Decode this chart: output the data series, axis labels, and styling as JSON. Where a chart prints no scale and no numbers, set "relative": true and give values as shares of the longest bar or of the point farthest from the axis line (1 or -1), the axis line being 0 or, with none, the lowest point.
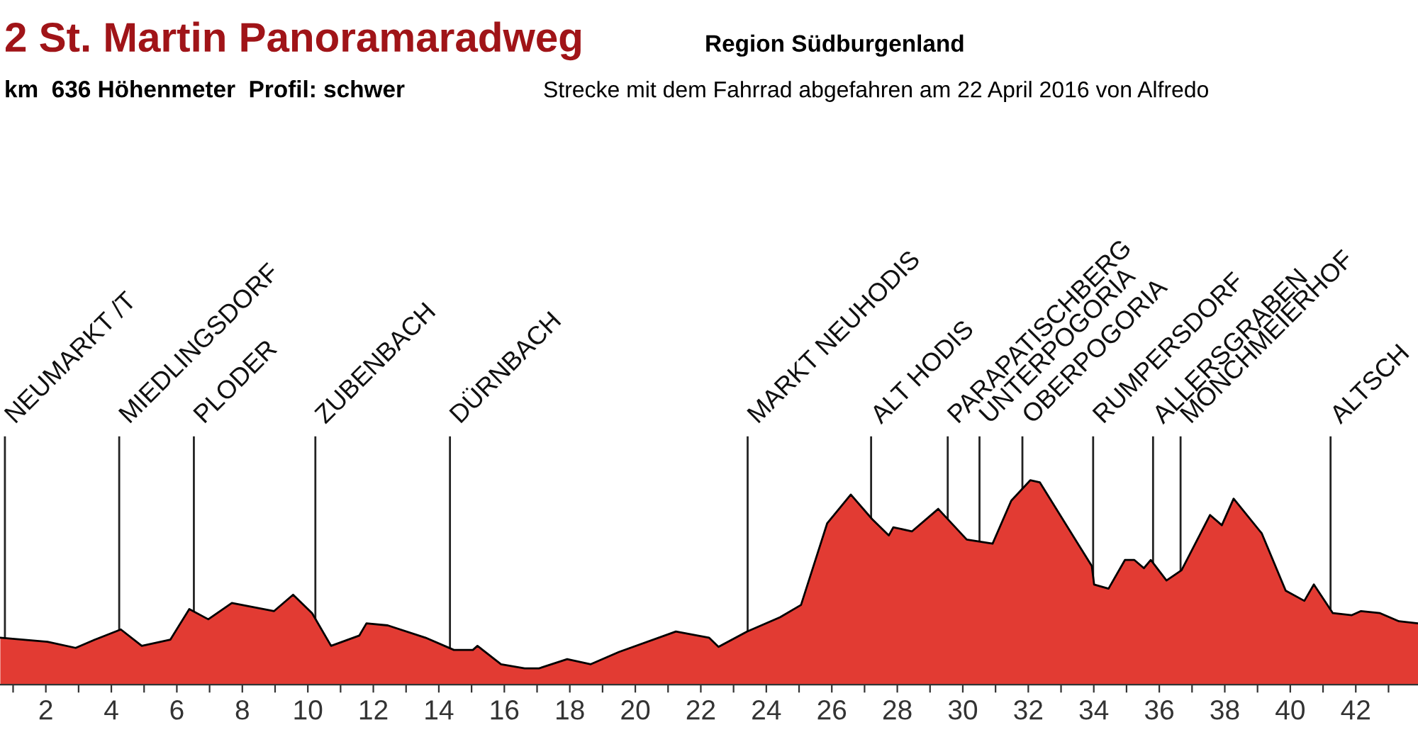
{
  "chart_data": {
    "type": "area",
    "title": "2 St. Martin Panoramaradweg",
    "subtitle": "km  636 Höhenmeter  Profil: schwer",
    "annotations": [
      "Region Südburgenland",
      "Strecke mit dem Fahrrad abgefahren am 22 April 2016 von Alfredo"
    ],
    "relative": true,
    "x": [
      0.61,
      2.05,
      2.91,
      3.49,
      4.29,
      4.93,
      5.8,
      6.38,
      6.96,
      7.68,
      8.97,
      9.55,
      10.13,
      10.71,
      11.57,
      11.79,
      12.44,
      13.59,
      14.46,
      15.04,
      15.18,
      15.9,
      16.62,
      17.06,
      17.92,
      18.64,
      19.5,
      21.24,
      22.25,
      22.54,
      23.41,
      24.42,
      25.06,
      25.86,
      26.58,
      27.23,
      27.74,
      27.88,
      28.45,
      29.25,
      30.12,
      30.91,
      31.48,
      32.06,
      32.35,
      33.94,
      34.01,
      34.45,
      34.95,
      35.24,
      35.53,
      35.74,
      36.22,
      36.68,
      37.55,
      37.91,
      38.27,
      39.13,
      39.86,
      40.43,
      40.72,
      41.3,
      41.88,
      42.16,
      42.74,
      43.32,
      43.9
    ],
    "series": [
      {
        "color": "#e23b33",
        "values": [
          0.23,
          0.21,
          0.18,
          0.22,
          0.27,
          0.19,
          0.22,
          0.37,
          0.32,
          0.4,
          0.36,
          0.44,
          0.35,
          0.19,
          0.24,
          0.3,
          0.29,
          0.23,
          0.17,
          0.17,
          0.19,
          0.1,
          0.08,
          0.08,
          0.125,
          0.1,
          0.16,
          0.26,
          0.23,
          0.185,
          0.26,
          0.33,
          0.39,
          0.79,
          0.93,
          0.81,
          0.73,
          0.77,
          0.75,
          0.86,
          0.71,
          0.69,
          0.9,
          1.0,
          0.99,
          0.58,
          0.49,
          0.47,
          0.61,
          0.61,
          0.57,
          0.61,
          0.51,
          0.56,
          0.83,
          0.78,
          0.91,
          0.74,
          0.46,
          0.41,
          0.49,
          0.35,
          0.34,
          0.36,
          0.35,
          0.31,
          0.3
        ]
      }
    ],
    "xlim": [
      0.6,
      43.9
    ],
    "xticks": [
      {
        "value": 1,
        "label": null
      },
      2,
      {
        "value": 3,
        "label": null
      },
      4,
      {
        "value": 5,
        "label": null
      },
      6,
      {
        "value": 7,
        "label": null
      },
      8,
      {
        "value": 9,
        "label": null
      },
      10,
      {
        "value": 11,
        "label": null
      },
      12,
      {
        "value": 13,
        "label": null
      },
      14,
      {
        "value": 15,
        "label": null
      },
      16,
      {
        "value": 17,
        "label": null
      },
      18,
      {
        "value": 19,
        "label": null
      },
      20,
      {
        "value": 21,
        "label": null
      },
      22,
      {
        "value": 23,
        "label": null
      },
      24,
      {
        "value": 25,
        "label": null
      },
      26,
      {
        "value": 27,
        "label": null
      },
      28,
      {
        "value": 29,
        "label": null
      },
      30,
      {
        "value": 31,
        "label": null
      },
      32,
      {
        "value": 33,
        "label": null
      },
      34,
      {
        "value": 35,
        "label": null
      },
      36,
      {
        "value": 37,
        "label": null
      },
      38,
      {
        "value": 39,
        "label": null
      },
      40,
      {
        "value": 41,
        "label": null
      },
      42,
      {
        "value": 43,
        "label": null
      }
    ],
    "ref_lines": [
      {
        "axis": "x",
        "value": 0.75,
        "label": "NEUMARKT /T",
        "color": "#222222"
      },
      {
        "axis": "x",
        "value": 4.24,
        "label": "MIEDLINGSDORF",
        "color": "#222222"
      },
      {
        "axis": "x",
        "value": 6.52,
        "label": "PLODER",
        "color": "#222222"
      },
      {
        "axis": "x",
        "value": 10.23,
        "label": "ZUBENBACH",
        "color": "#222222"
      },
      {
        "axis": "x",
        "value": 14.34,
        "label": "DÜRNBACH",
        "color": "#222222"
      },
      {
        "axis": "x",
        "value": 23.43,
        "label": "MARKT NEUHODIS",
        "color": "#222222"
      },
      {
        "axis": "x",
        "value": 27.2,
        "label": "ALT HODIS",
        "color": "#222222"
      },
      {
        "axis": "x",
        "value": 29.54,
        "label": "PARAPATISCHBERG",
        "color": "#222222"
      },
      {
        "axis": "x",
        "value": 30.51,
        "label": "UNTERPOGORIA",
        "color": "#222222"
      },
      {
        "axis": "x",
        "value": 31.82,
        "label": "OBERPOGORIA",
        "color": "#222222"
      },
      {
        "axis": "x",
        "value": 33.98,
        "label": "RUMPERSDORF",
        "color": "#222222"
      },
      {
        "axis": "x",
        "value": 35.81,
        "label": "ALLERSGRABEN",
        "color": "#222222"
      },
      {
        "axis": "x",
        "value": 36.65,
        "label": "MÖNCHMEIERHOF",
        "color": "#222222"
      },
      {
        "axis": "x",
        "value": 41.23,
        "label": "ALTSCH",
        "color": "#222222"
      }
    ],
    "grid": false,
    "legend": false
  }
}
